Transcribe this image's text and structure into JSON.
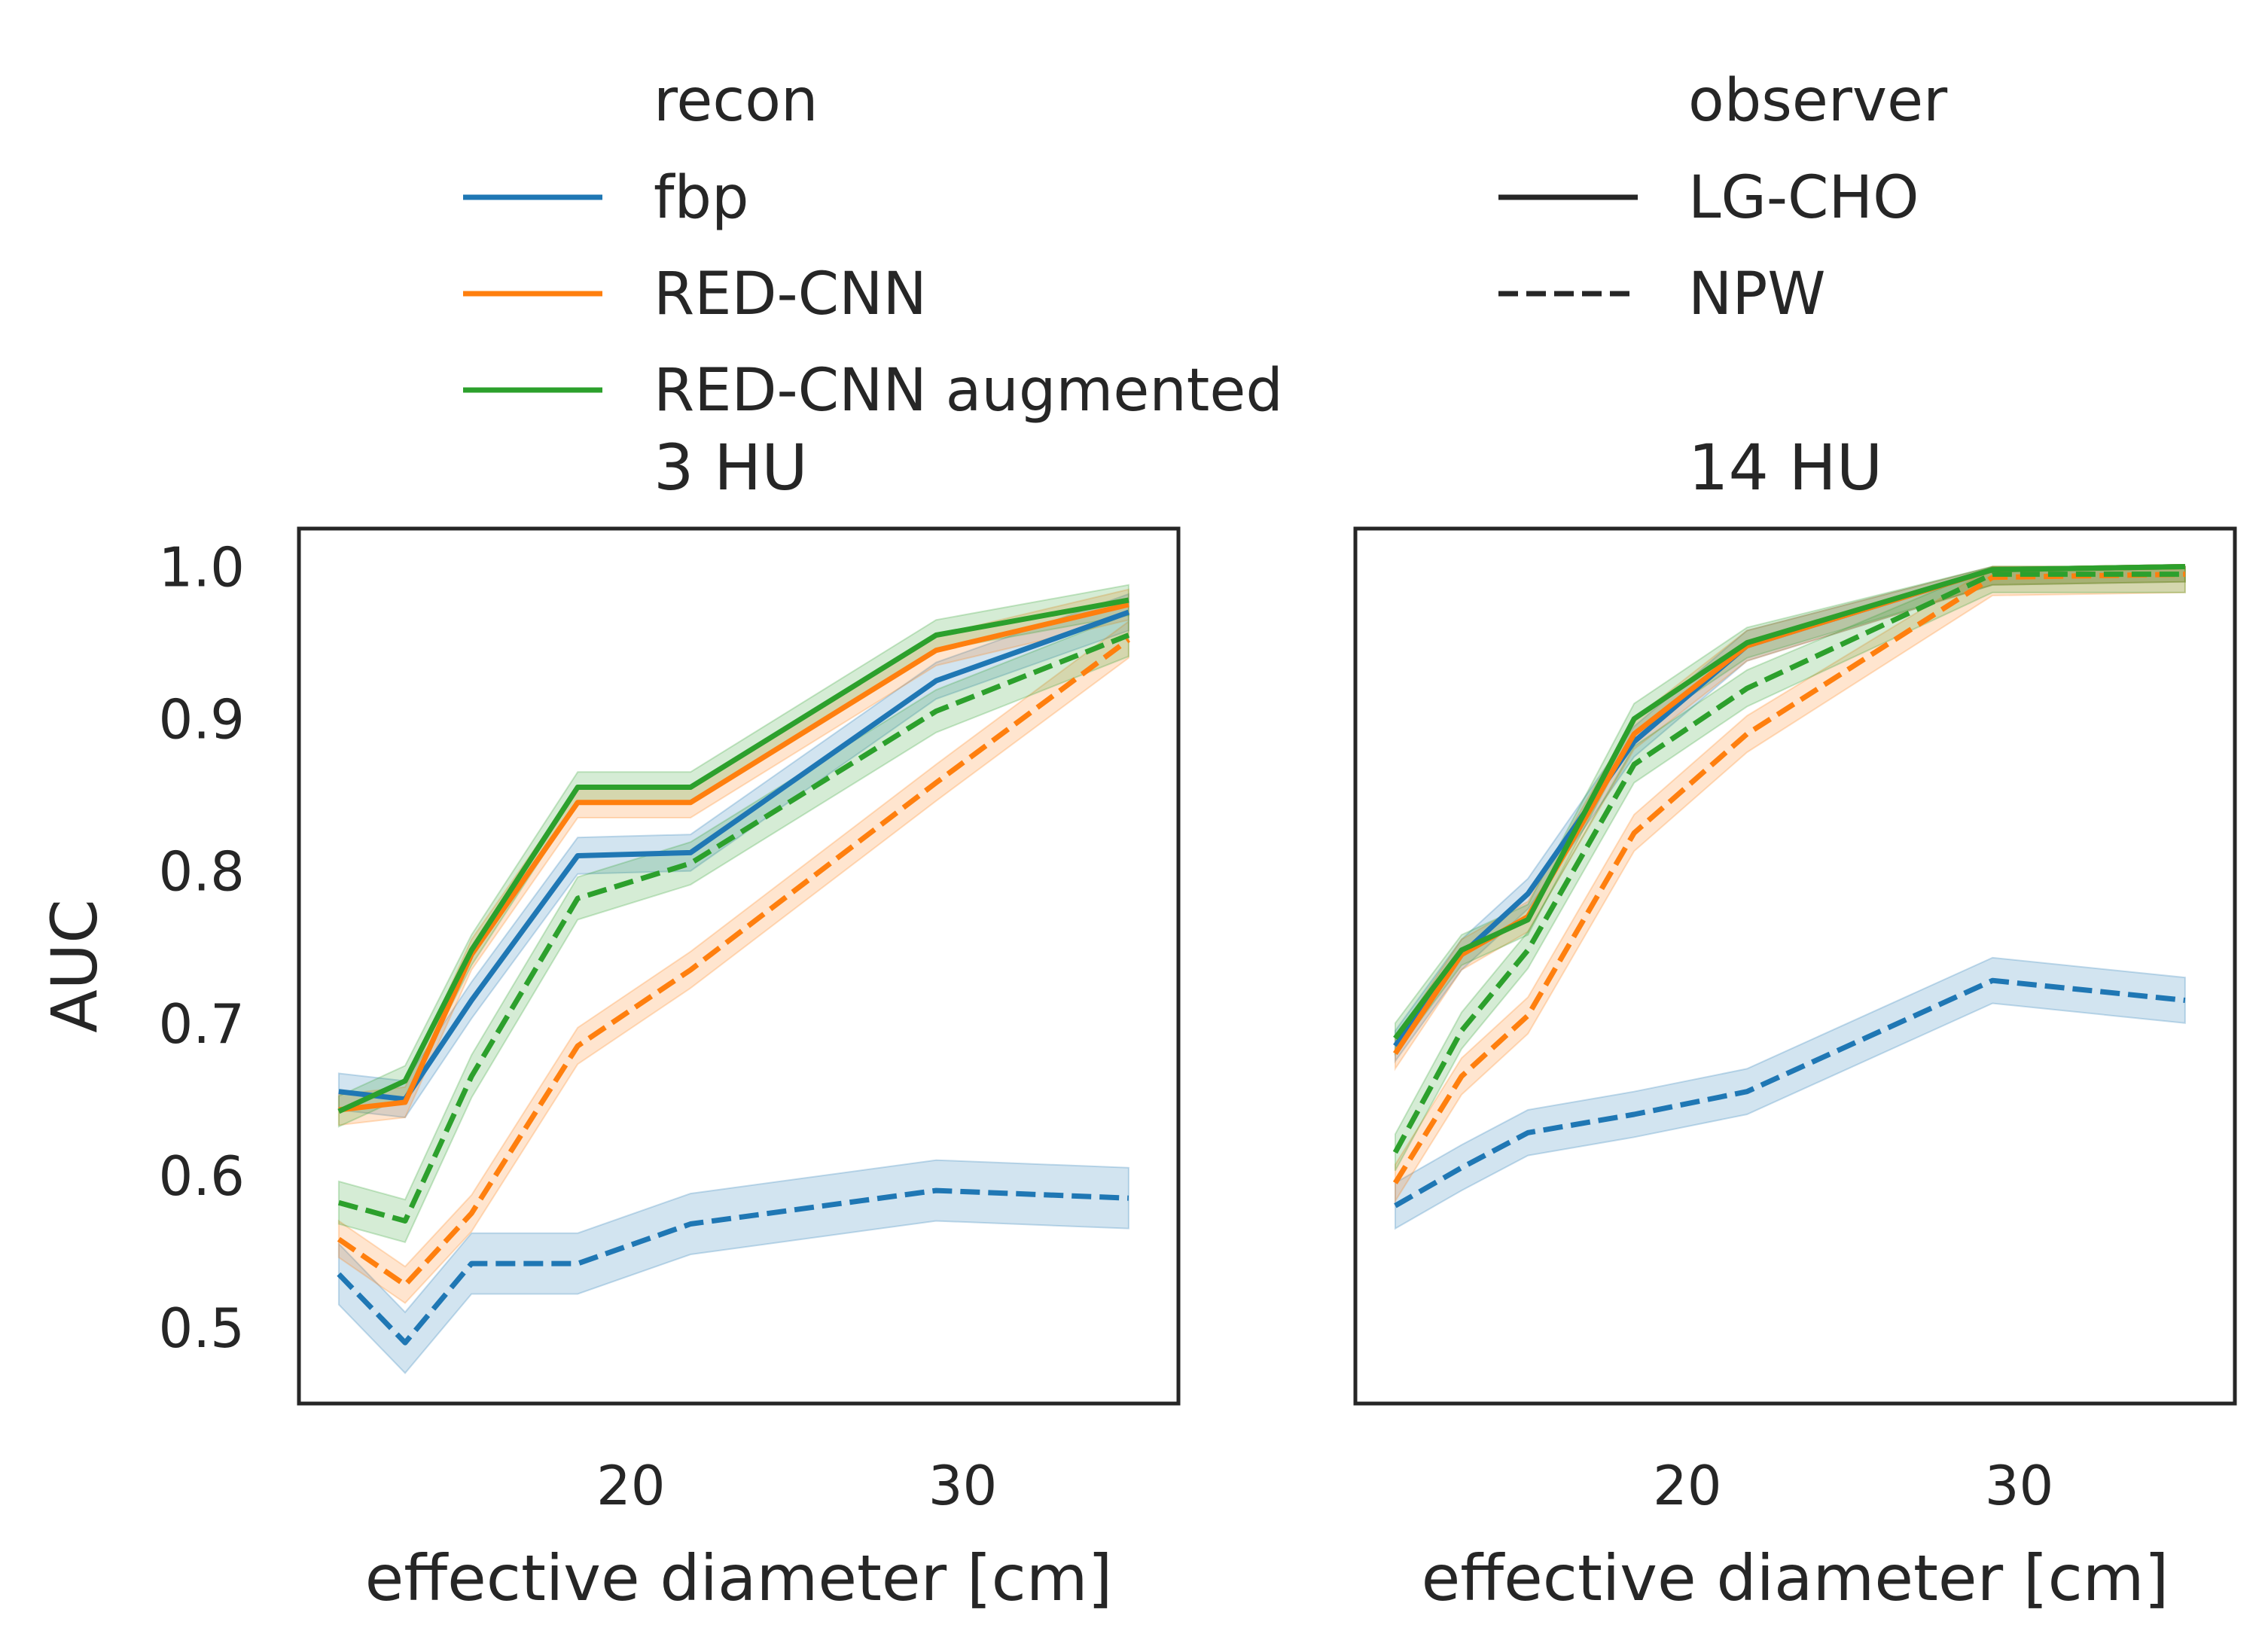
{
  "chart_data": {
    "type": "line",
    "ylabel": "AUC",
    "xlabel": "effective diameter [cm]",
    "x_ticks": [
      20,
      30
    ],
    "y_ticks": [
      "0.5",
      "0.6",
      "0.7",
      "0.8",
      "0.9",
      "1.0"
    ],
    "xlim": [
      10,
      36.5
    ],
    "ylim": [
      0.45,
      1.025
    ],
    "legend": {
      "placement": "top",
      "recon": {
        "title": "recon",
        "entries": [
          {
            "label": "fbp",
            "color": "#1f77b4"
          },
          {
            "label": "RED-CNN",
            "color": "#ff7f0e"
          },
          {
            "label": "RED-CNN augmented",
            "color": "#2ca02c"
          }
        ]
      },
      "observer": {
        "title": "observer",
        "entries": [
          {
            "label": "LG-CHO",
            "style": "solid"
          },
          {
            "label": "NPW",
            "style": "dashed"
          }
        ]
      }
    },
    "x": [
      11.2,
      13.2,
      15.2,
      18.4,
      21.8,
      29.2,
      35
    ],
    "panels": [
      {
        "title": "3 HU",
        "series": [
          {
            "recon": "fbp",
            "observer": "LG-CHO",
            "color": "#1f77b4",
            "dash": false,
            "values": [
              0.655,
              0.65,
              0.715,
              0.81,
              0.812,
              0.925,
              0.97
            ],
            "band": 0.012
          },
          {
            "recon": "RED-CNN",
            "observer": "LG-CHO",
            "color": "#ff7f0e",
            "dash": false,
            "values": [
              0.643,
              0.648,
              0.745,
              0.845,
              0.845,
              0.945,
              0.975
            ],
            "band": 0.01
          },
          {
            "recon": "RED-CNN augmented",
            "observer": "LG-CHO",
            "color": "#2ca02c",
            "dash": false,
            "values": [
              0.642,
              0.662,
              0.748,
              0.855,
              0.855,
              0.955,
              0.978
            ],
            "band": 0.01
          },
          {
            "recon": "fbp",
            "observer": "NPW",
            "color": "#1f77b4",
            "dash": true,
            "values": [
              0.535,
              0.49,
              0.542,
              0.542,
              0.568,
              0.59,
              0.585
            ],
            "band": 0.02
          },
          {
            "recon": "RED-CNN",
            "observer": "NPW",
            "color": "#ff7f0e",
            "dash": true,
            "values": [
              0.558,
              0.528,
              0.575,
              0.685,
              0.735,
              0.858,
              0.952
            ],
            "band": 0.012
          },
          {
            "recon": "RED-CNN augmented",
            "observer": "NPW",
            "color": "#2ca02c",
            "dash": true,
            "values": [
              0.582,
              0.57,
              0.665,
              0.782,
              0.805,
              0.905,
              0.955
            ],
            "band": 0.014
          }
        ]
      },
      {
        "title": "14 HU",
        "series": [
          {
            "recon": "fbp",
            "observer": "LG-CHO",
            "color": "#1f77b4",
            "dash": false,
            "values": [
              0.685,
              0.745,
              0.785,
              0.885,
              0.948,
              0.998,
              1.0
            ],
            "band": 0.01
          },
          {
            "recon": "RED-CNN",
            "observer": "LG-CHO",
            "color": "#ff7f0e",
            "dash": false,
            "values": [
              0.68,
              0.745,
              0.77,
              0.89,
              0.948,
              0.998,
              1.0
            ],
            "band": 0.01
          },
          {
            "recon": "RED-CNN augmented",
            "observer": "LG-CHO",
            "color": "#2ca02c",
            "dash": false,
            "values": [
              0.69,
              0.748,
              0.768,
              0.9,
              0.95,
              0.998,
              1.0
            ],
            "band": 0.01
          },
          {
            "recon": "fbp",
            "observer": "NPW",
            "color": "#1f77b4",
            "dash": true,
            "values": [
              0.58,
              0.605,
              0.628,
              0.64,
              0.655,
              0.728,
              0.715
            ],
            "band": 0.015
          },
          {
            "recon": "RED-CNN",
            "observer": "NPW",
            "color": "#ff7f0e",
            "dash": true,
            "values": [
              0.595,
              0.665,
              0.705,
              0.825,
              0.89,
              0.993,
              0.995
            ],
            "band": 0.012
          },
          {
            "recon": "RED-CNN augmented",
            "observer": "NPW",
            "color": "#2ca02c",
            "dash": true,
            "values": [
              0.615,
              0.695,
              0.748,
              0.87,
              0.92,
              0.995,
              0.995
            ],
            "band": 0.012
          }
        ]
      }
    ]
  }
}
